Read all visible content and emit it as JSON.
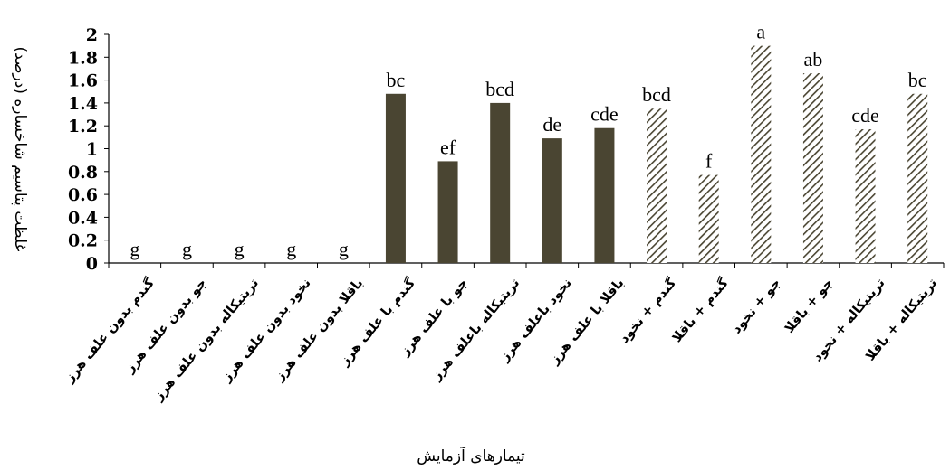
{
  "chart_data": {
    "type": "bar",
    "title": "",
    "xlabel": "تیمارهای آزمایش",
    "ylabel": "غلظت پتاسیم شاخساره (درصد)",
    "ylim": [
      0,
      2
    ],
    "yticks": [
      "0",
      "0.2",
      "0.4",
      "0.6",
      "0.8",
      "1",
      "1.2",
      "1.4",
      "1.6",
      "1.8",
      "2"
    ],
    "grid": false,
    "legend": "none",
    "categories": [
      "گندم بدون علف هرز",
      "جو بدون علف هرز",
      "تریتیکاله بدون علف هرز",
      "نخود بدون علف هرز",
      "باقلا بدون علف هرز",
      "گندم با علف هرز",
      "جو با علف هرز",
      "تریتیکاله باعلف هرز",
      "نخود باعلف هرز",
      "باقلا با علف هرز",
      "گندم + نخود",
      "گندم + باقلا",
      "جو + نخود",
      "جو + باقلا",
      "تریتیکاله + نخود",
      "تریتیکاله + باقلا"
    ],
    "values": [
      0,
      0,
      0,
      0,
      0,
      1.48,
      0.89,
      1.4,
      1.09,
      1.18,
      1.35,
      0.77,
      1.9,
      1.66,
      1.17,
      1.48
    ],
    "letters": [
      "g",
      "g",
      "g",
      "g",
      "g",
      "bc",
      "ef",
      "bcd",
      "de",
      "cde",
      "bcd",
      "f",
      "a",
      "ab",
      "cde",
      "bc"
    ],
    "fill_style": [
      "none",
      "none",
      "none",
      "none",
      "none",
      "solid",
      "solid",
      "solid",
      "solid",
      "solid",
      "hatched",
      "hatched",
      "hatched",
      "hatched",
      "hatched",
      "hatched"
    ],
    "colors": {
      "solid": "#4a4532",
      "hatch": "#4a4532",
      "axis": "#000000"
    }
  }
}
